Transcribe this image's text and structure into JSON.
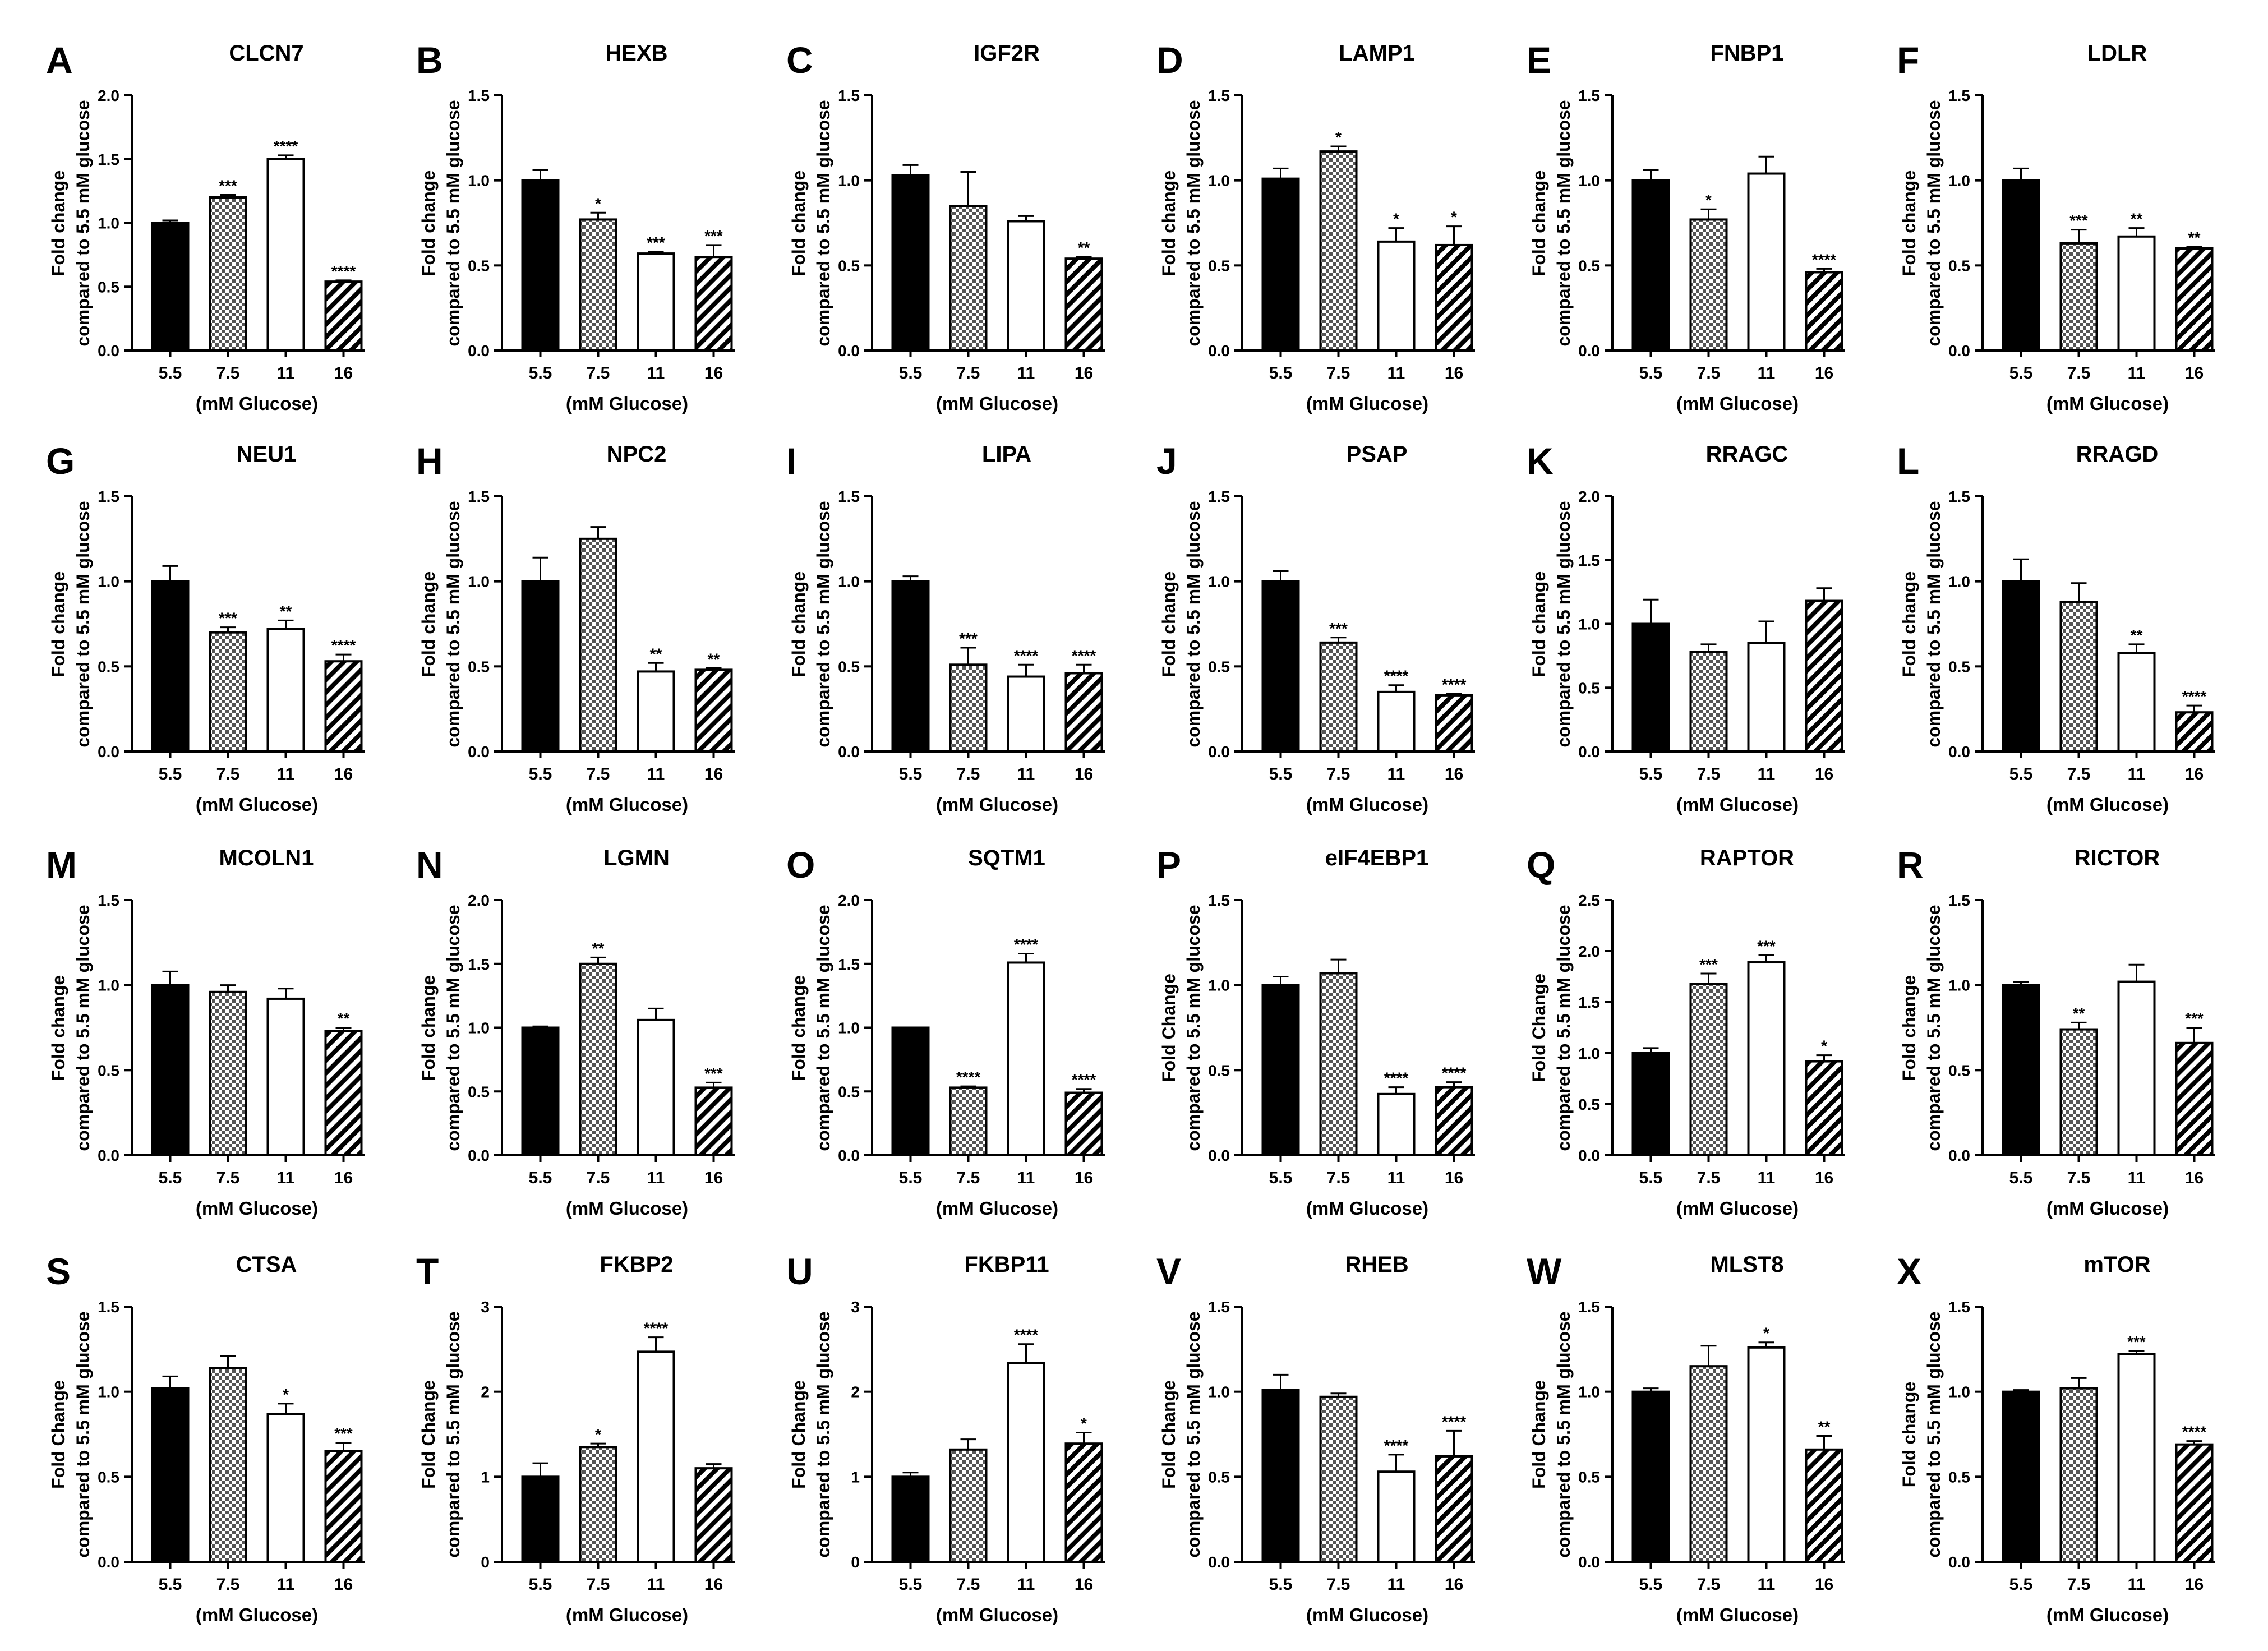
{
  "chart_data": [
    {
      "panel": "A",
      "type": "bar",
      "title": "CLCN7",
      "ylabel_line1": "Fold change",
      "ylabel_line2": "compared to 5.5 mM glucose",
      "xlabel": "(mM Glucose)",
      "categories": [
        "5.5",
        "7.5",
        "11",
        "16"
      ],
      "values": [
        1.0,
        1.2,
        1.5,
        0.54
      ],
      "errors": [
        0.02,
        0.02,
        0.03,
        0.01
      ],
      "significance": [
        "",
        "***",
        "****",
        "****"
      ],
      "ylim": [
        0,
        2.0
      ],
      "yticks": [
        "0.0",
        "0.5",
        "1.0",
        "1.5",
        "2.0"
      ]
    },
    {
      "panel": "B",
      "type": "bar",
      "title": "HEXB",
      "ylabel_line1": "Fold change",
      "ylabel_line2": "compared to 5.5 mM glucose",
      "xlabel": "(mM Glucose)",
      "categories": [
        "5.5",
        "7.5",
        "11",
        "16"
      ],
      "values": [
        1.0,
        0.77,
        0.57,
        0.55
      ],
      "errors": [
        0.06,
        0.04,
        0.01,
        0.07
      ],
      "significance": [
        "",
        "*",
        "***",
        "***"
      ],
      "ylim": [
        0,
        1.5
      ],
      "yticks": [
        "0.0",
        "0.5",
        "1.0",
        "1.5"
      ]
    },
    {
      "panel": "C",
      "type": "bar",
      "title": "IGF2R",
      "ylabel_line1": "Fold change",
      "ylabel_line2": "compared to 5.5 mM glucose",
      "xlabel": "(mM Glucose)",
      "categories": [
        "5.5",
        "7.5",
        "11",
        "16"
      ],
      "values": [
        1.03,
        0.85,
        0.76,
        0.54
      ],
      "errors": [
        0.06,
        0.2,
        0.03,
        0.01
      ],
      "significance": [
        "",
        "",
        "",
        "**"
      ],
      "ylim": [
        0,
        1.5
      ],
      "yticks": [
        "0.0",
        "0.5",
        "1.0",
        "1.5"
      ]
    },
    {
      "panel": "D",
      "type": "bar",
      "title": "LAMP1",
      "ylabel_line1": "Fold change",
      "ylabel_line2": "compared to 5.5 mM glucose",
      "xlabel": "(mM Glucose)",
      "categories": [
        "5.5",
        "7.5",
        "11",
        "16"
      ],
      "values": [
        1.01,
        1.17,
        0.64,
        0.62
      ],
      "errors": [
        0.06,
        0.03,
        0.08,
        0.11
      ],
      "significance": [
        "",
        "*",
        "*",
        "*"
      ],
      "ylim": [
        0,
        1.5
      ],
      "yticks": [
        "0.0",
        "0.5",
        "1.0",
        "1.5"
      ]
    },
    {
      "panel": "E",
      "type": "bar",
      "title": "FNBP1",
      "ylabel_line1": "Fold change",
      "ylabel_line2": "compared to 5.5 mM glucose",
      "xlabel": "(mM Glucose)",
      "categories": [
        "5.5",
        "7.5",
        "11",
        "16"
      ],
      "values": [
        1.0,
        0.77,
        1.04,
        0.46
      ],
      "errors": [
        0.06,
        0.06,
        0.1,
        0.02
      ],
      "significance": [
        "",
        "*",
        "",
        "****"
      ],
      "ylim": [
        0,
        1.5
      ],
      "yticks": [
        "0.0",
        "0.5",
        "1.0",
        "1.5"
      ]
    },
    {
      "panel": "F",
      "type": "bar",
      "title": "LDLR",
      "ylabel_line1": "Fold change",
      "ylabel_line2": "compared to 5.5 mM glucose",
      "xlabel": "(mM Glucose)",
      "categories": [
        "5.5",
        "7.5",
        "11",
        "16"
      ],
      "values": [
        1.0,
        0.63,
        0.67,
        0.6
      ],
      "errors": [
        0.07,
        0.08,
        0.05,
        0.01
      ],
      "significance": [
        "",
        "***",
        "**",
        "**"
      ],
      "ylim": [
        0,
        1.5
      ],
      "yticks": [
        "0.0",
        "0.5",
        "1.0",
        "1.5"
      ]
    },
    {
      "panel": "G",
      "type": "bar",
      "title": "NEU1",
      "ylabel_line1": "Fold change",
      "ylabel_line2": "compared to 5.5 mM glucose",
      "xlabel": "(mM Glucose)",
      "categories": [
        "5.5",
        "7.5",
        "11",
        "16"
      ],
      "values": [
        1.0,
        0.7,
        0.72,
        0.53
      ],
      "errors": [
        0.09,
        0.03,
        0.05,
        0.04
      ],
      "significance": [
        "",
        "***",
        "**",
        "****"
      ],
      "ylim": [
        0,
        1.5
      ],
      "yticks": [
        "0.0",
        "0.5",
        "1.0",
        "1.5"
      ]
    },
    {
      "panel": "H",
      "type": "bar",
      "title": "NPC2",
      "ylabel_line1": "Fold change",
      "ylabel_line2": "compared to 5.5 mM glucose",
      "xlabel": "(mM Glucose)",
      "categories": [
        "5.5",
        "7.5",
        "11",
        "16"
      ],
      "values": [
        1.0,
        1.25,
        0.47,
        0.48
      ],
      "errors": [
        0.14,
        0.07,
        0.05,
        0.01
      ],
      "significance": [
        "",
        "",
        "**",
        "**"
      ],
      "ylim": [
        0,
        1.5
      ],
      "yticks": [
        "0.0",
        "0.5",
        "1.0",
        "1.5"
      ]
    },
    {
      "panel": "I",
      "type": "bar",
      "title": "LIPA",
      "ylabel_line1": "Fold change",
      "ylabel_line2": "compared to 5.5 mM glucose",
      "xlabel": "(mM Glucose)",
      "categories": [
        "5.5",
        "7.5",
        "11",
        "16"
      ],
      "values": [
        1.0,
        0.51,
        0.44,
        0.46
      ],
      "errors": [
        0.03,
        0.1,
        0.07,
        0.05
      ],
      "significance": [
        "",
        "***",
        "****",
        "****"
      ],
      "ylim": [
        0,
        1.5
      ],
      "yticks": [
        "0.0",
        "0.5",
        "1.0",
        "1.5"
      ]
    },
    {
      "panel": "J",
      "type": "bar",
      "title": "PSAP",
      "ylabel_line1": "Fold change",
      "ylabel_line2": "compared to 5.5 mM glucose",
      "xlabel": "(mM Glucose)",
      "categories": [
        "5.5",
        "7.5",
        "11",
        "16"
      ],
      "values": [
        1.0,
        0.64,
        0.35,
        0.33
      ],
      "errors": [
        0.06,
        0.03,
        0.04,
        0.01
      ],
      "significance": [
        "",
        "***",
        "****",
        "****"
      ],
      "ylim": [
        0,
        1.5
      ],
      "yticks": [
        "0.0",
        "0.5",
        "1.0",
        "1.5"
      ]
    },
    {
      "panel": "K",
      "type": "bar",
      "title": "RRAGC",
      "ylabel_line1": "Fold change",
      "ylabel_line2": "compared to 5.5 mM glucose",
      "xlabel": "(mM Glucose)",
      "categories": [
        "5.5",
        "7.5",
        "11",
        "16"
      ],
      "values": [
        1.0,
        0.78,
        0.85,
        1.18
      ],
      "errors": [
        0.19,
        0.06,
        0.17,
        0.1
      ],
      "significance": [
        "",
        "",
        "",
        ""
      ],
      "ylim": [
        0,
        2.0
      ],
      "yticks": [
        "0.0",
        "0.5",
        "1.0",
        "1.5",
        "2.0"
      ]
    },
    {
      "panel": "L",
      "type": "bar",
      "title": "RRAGD",
      "ylabel_line1": "Fold change",
      "ylabel_line2": "compared to 5.5 mM glucose",
      "xlabel": "(mM Glucose)",
      "categories": [
        "5.5",
        "7.5",
        "11",
        "16"
      ],
      "values": [
        1.0,
        0.88,
        0.58,
        0.23
      ],
      "errors": [
        0.13,
        0.11,
        0.05,
        0.04
      ],
      "significance": [
        "",
        "",
        "**",
        "****"
      ],
      "ylim": [
        0,
        1.5
      ],
      "yticks": [
        "0.0",
        "0.5",
        "1.0",
        "1.5"
      ]
    },
    {
      "panel": "M",
      "type": "bar",
      "title": "MCOLN1",
      "ylabel_line1": "Fold change",
      "ylabel_line2": "compared to 5.5 mM glucose",
      "xlabel": "(mM Glucose)",
      "categories": [
        "5.5",
        "7.5",
        "11",
        "16"
      ],
      "values": [
        1.0,
        0.96,
        0.92,
        0.73
      ],
      "errors": [
        0.08,
        0.04,
        0.06,
        0.02
      ],
      "significance": [
        "",
        "",
        "",
        "**"
      ],
      "ylim": [
        0,
        1.5
      ],
      "yticks": [
        "0.0",
        "0.5",
        "1.0",
        "1.5"
      ]
    },
    {
      "panel": "N",
      "type": "bar",
      "title": "LGMN",
      "ylabel_line1": "Fold change",
      "ylabel_line2": "compared to 5.5 mM glucose",
      "xlabel": "(mM Glucose)",
      "categories": [
        "5.5",
        "7.5",
        "11",
        "16"
      ],
      "values": [
        1.0,
        1.5,
        1.06,
        0.53
      ],
      "errors": [
        0.01,
        0.05,
        0.09,
        0.04
      ],
      "significance": [
        "",
        "**",
        "",
        "***"
      ],
      "ylim": [
        0,
        2.0
      ],
      "yticks": [
        "0.0",
        "0.5",
        "1.0",
        "1.5",
        "2.0"
      ]
    },
    {
      "panel": "O",
      "type": "bar",
      "title": "SQTM1",
      "ylabel_line1": "Fold change",
      "ylabel_line2": "compared to 5.5 mM glucose",
      "xlabel": "(mM Glucose)",
      "categories": [
        "5.5",
        "7.5",
        "11",
        "16"
      ],
      "values": [
        1.0,
        0.53,
        1.51,
        0.49
      ],
      "errors": [
        0.0,
        0.01,
        0.07,
        0.03
      ],
      "significance": [
        "",
        "****",
        "****",
        "****"
      ],
      "ylim": [
        0,
        2.0
      ],
      "yticks": [
        "0.0",
        "0.5",
        "1.0",
        "1.5",
        "2.0"
      ]
    },
    {
      "panel": "P",
      "type": "bar",
      "title": "eIF4EBP1",
      "ylabel_line1": "Fold Change",
      "ylabel_line2": "compared to 5.5 mM glucose",
      "xlabel": "(mM Glucose)",
      "categories": [
        "5.5",
        "7.5",
        "11",
        "16"
      ],
      "values": [
        1.0,
        1.07,
        0.36,
        0.4
      ],
      "errors": [
        0.05,
        0.08,
        0.04,
        0.03
      ],
      "significance": [
        "",
        "",
        "****",
        "****"
      ],
      "ylim": [
        0,
        1.5
      ],
      "yticks": [
        "0.0",
        "0.5",
        "1.0",
        "1.5"
      ]
    },
    {
      "panel": "Q",
      "type": "bar",
      "title": "RAPTOR",
      "ylabel_line1": "Fold Change",
      "ylabel_line2": "compared to 5.5 mM glucose",
      "xlabel": "(mM Glucose)",
      "categories": [
        "5.5",
        "7.5",
        "11",
        "16"
      ],
      "values": [
        1.0,
        1.68,
        1.89,
        0.92
      ],
      "errors": [
        0.05,
        0.1,
        0.07,
        0.06
      ],
      "significance": [
        "",
        "***",
        "***",
        "*"
      ],
      "ylim": [
        0,
        2.5
      ],
      "yticks": [
        "0.0",
        "0.5",
        "1.0",
        "1.5",
        "2.0",
        "2.5"
      ]
    },
    {
      "panel": "R",
      "type": "bar",
      "title": "RICTOR",
      "ylabel_line1": "Fold change",
      "ylabel_line2": "compared to 5.5 mM glucose",
      "xlabel": "(mM Glucose)",
      "categories": [
        "5.5",
        "7.5",
        "11",
        "16"
      ],
      "values": [
        1.0,
        0.74,
        1.02,
        0.66
      ],
      "errors": [
        0.02,
        0.04,
        0.1,
        0.09
      ],
      "significance": [
        "",
        "**",
        "",
        "***"
      ],
      "ylim": [
        0,
        1.5
      ],
      "yticks": [
        "0.0",
        "0.5",
        "1.0",
        "1.5"
      ]
    },
    {
      "panel": "S",
      "type": "bar",
      "title": "CTSA",
      "ylabel_line1": "Fold Change",
      "ylabel_line2": "compared to 5.5 mM glucose",
      "xlabel": "(mM Glucose)",
      "categories": [
        "5.5",
        "7.5",
        "11",
        "16"
      ],
      "values": [
        1.02,
        1.14,
        0.87,
        0.65
      ],
      "errors": [
        0.07,
        0.07,
        0.06,
        0.05
      ],
      "significance": [
        "",
        "",
        "*",
        "***"
      ],
      "ylim": [
        0,
        1.5
      ],
      "yticks": [
        "0.0",
        "0.5",
        "1.0",
        "1.5"
      ]
    },
    {
      "panel": "T",
      "type": "bar",
      "title": "FKBP2",
      "ylabel_line1": "Fold Change",
      "ylabel_line2": "compared to 5.5 mM glucose",
      "xlabel": "(mM Glucose)",
      "categories": [
        "5.5",
        "7.5",
        "11",
        "16"
      ],
      "values": [
        1.0,
        1.35,
        2.47,
        1.1
      ],
      "errors": [
        0.16,
        0.04,
        0.17,
        0.05
      ],
      "significance": [
        "",
        "*",
        "****",
        ""
      ],
      "ylim": [
        0,
        3
      ],
      "yticks": [
        "0",
        "1",
        "2",
        "3"
      ]
    },
    {
      "panel": "U",
      "type": "bar",
      "title": "FKBP11",
      "ylabel_line1": "Fold Change",
      "ylabel_line2": "compared to 5.5 mM glucose",
      "xlabel": "(mM Glucose)",
      "categories": [
        "5.5",
        "7.5",
        "11",
        "16"
      ],
      "values": [
        1.0,
        1.32,
        2.34,
        1.39
      ],
      "errors": [
        0.05,
        0.12,
        0.22,
        0.13
      ],
      "significance": [
        "",
        "",
        "****",
        "*"
      ],
      "ylim": [
        0,
        3
      ],
      "yticks": [
        "0",
        "1",
        "2",
        "3"
      ]
    },
    {
      "panel": "V",
      "type": "bar",
      "title": "RHEB",
      "ylabel_line1": "Fold Change",
      "ylabel_line2": "compared to 5.5 mM glucose",
      "xlabel": "(mM Glucose)",
      "categories": [
        "5.5",
        "7.5",
        "11",
        "16"
      ],
      "values": [
        1.01,
        0.97,
        0.53,
        0.62
      ],
      "errors": [
        0.09,
        0.02,
        0.1,
        0.15
      ],
      "significance": [
        "",
        "",
        "****",
        "****"
      ],
      "ylim": [
        0,
        1.5
      ],
      "yticks": [
        "0.0",
        "0.5",
        "1.0",
        "1.5"
      ]
    },
    {
      "panel": "W",
      "type": "bar",
      "title": "MLST8",
      "ylabel_line1": "Fold Change",
      "ylabel_line2": "compared to 5.5 mM glucose",
      "xlabel": "(mM Glucose)",
      "categories": [
        "5.5",
        "7.5",
        "11",
        "16"
      ],
      "values": [
        1.0,
        1.15,
        1.26,
        0.66
      ],
      "errors": [
        0.02,
        0.12,
        0.03,
        0.08
      ],
      "significance": [
        "",
        "",
        "*",
        "**"
      ],
      "ylim": [
        0,
        1.5
      ],
      "yticks": [
        "0.0",
        "0.5",
        "1.0",
        "1.5"
      ]
    },
    {
      "panel": "X",
      "type": "bar",
      "title": "mTOR",
      "ylabel_line1": "Fold change",
      "ylabel_line2": "compared to 5.5 mM glucose",
      "xlabel": "(mM Glucose)",
      "categories": [
        "5.5",
        "7.5",
        "11",
        "16"
      ],
      "values": [
        1.0,
        1.02,
        1.22,
        0.69
      ],
      "errors": [
        0.01,
        0.06,
        0.02,
        0.02
      ],
      "significance": [
        "",
        "",
        "***",
        "****"
      ],
      "ylim": [
        0,
        1.5
      ],
      "yticks": [
        "0.0",
        "0.5",
        "1.0",
        "1.5"
      ]
    }
  ]
}
